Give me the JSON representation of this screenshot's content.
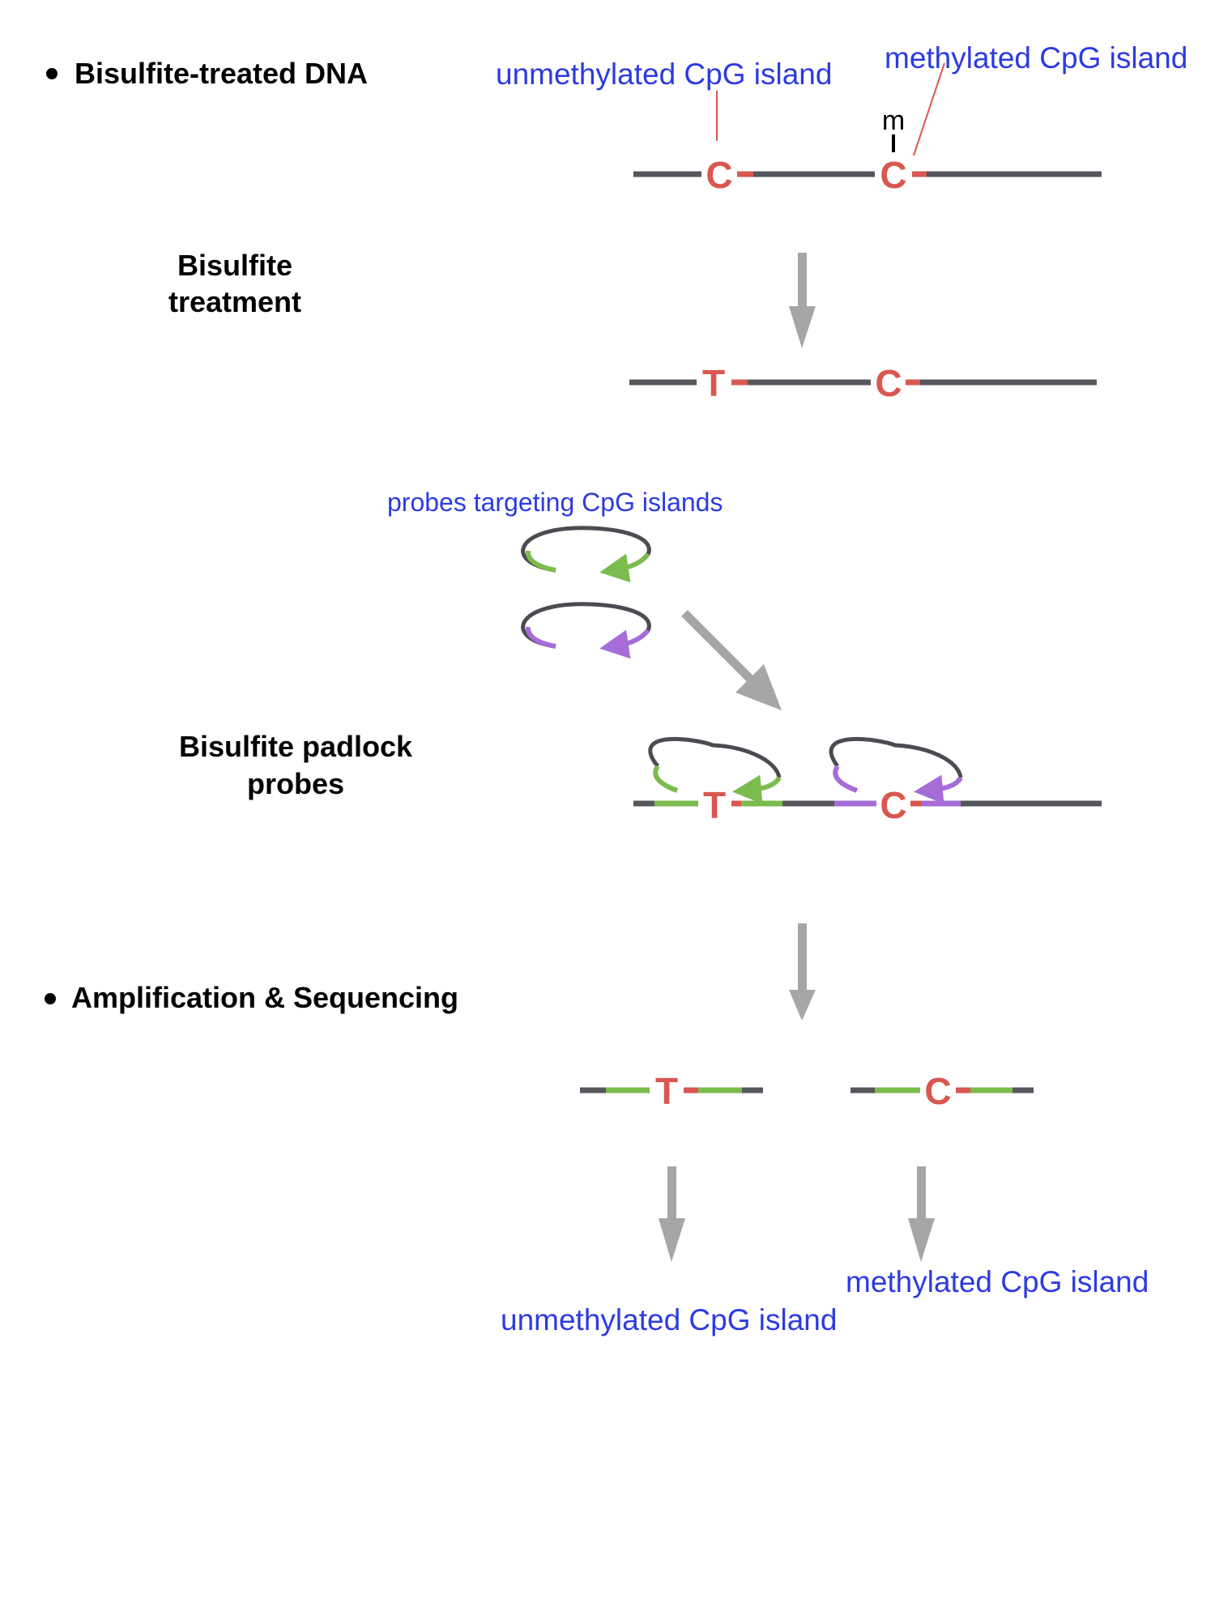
{
  "sections": {
    "bisulfite_treated_dna": "Bisulfite-treated DNA",
    "bisulfite_treatment_line1": "Bisulfite",
    "bisulfite_treatment_line2": "treatment",
    "padlock_line1": "Bisulfite padlock",
    "padlock_line2": "probes",
    "amplification_sequencing": "Amplification & Sequencing"
  },
  "annotations": {
    "unmethylated_top": "unmethylated CpG island",
    "methylated_top": "methylated CpG island",
    "probes_targeting": "probes targeting CpG islands",
    "methylated_bottom": "methylated CpG island",
    "unmethylated_bottom": "unmethylated CpG island"
  },
  "bases": {
    "original_left": "C",
    "original_right": "C",
    "methyl_mark": "m",
    "treated_left": "T",
    "treated_right": "C",
    "padlock_left": "T",
    "padlock_right": "C",
    "product_left": "T",
    "product_right": "C"
  },
  "colors": {
    "dna_strand": "#55575c",
    "cpg_base": "#d9574f",
    "label_blue": "#2c3be0",
    "arrow_gray": "#a6a6a6",
    "probe_green": "#7cbb4e",
    "probe_purple": "#a66cd8",
    "probe_backbone": "#4a4c52"
  }
}
